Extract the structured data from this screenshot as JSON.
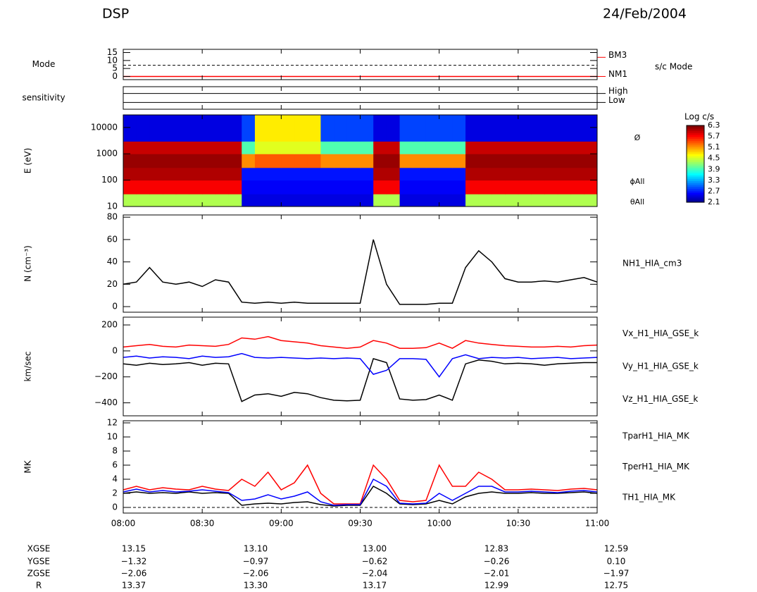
{
  "header": {
    "left": "DSP",
    "right": "24/Feb/2004"
  },
  "chart_data": [
    {
      "type": "line",
      "ylabel": "Mode",
      "ylim": [
        -2,
        17
      ],
      "yticks": [
        0,
        5,
        10,
        15
      ],
      "reference": 7,
      "levels": [
        {
          "label": "BM3",
          "value": 12
        },
        {
          "label": "NM1",
          "value": 0
        }
      ],
      "level_color": "#ff0000",
      "side_label": "s/c Mode",
      "x": [
        0,
        180
      ],
      "series": [
        {
          "color": "#ff0000",
          "values": [
            0,
            0
          ]
        }
      ]
    },
    {
      "type": "line",
      "ylabel": "sensitivity",
      "ylim": [
        0,
        1
      ],
      "yticks": [],
      "level_lines": true,
      "levels": [
        {
          "label": "High",
          "value": 0.7
        },
        {
          "label": "Low",
          "value": 0.3
        }
      ],
      "level_color": "#000000",
      "x": [],
      "series": []
    },
    {
      "type": "heatmap",
      "ylabel": "E (eV)",
      "log": true,
      "ylim": [
        10,
        30000
      ],
      "yticks": [
        10,
        100,
        1000,
        10000
      ],
      "annotations": [
        "Ø",
        "ϕAll",
        "θAll"
      ],
      "colorbar": {
        "title": "Log c/s",
        "zlim": [
          2.1,
          6.3
        ],
        "ticks": [
          6.3,
          5.7,
          5.1,
          4.5,
          3.9,
          3.3,
          2.7,
          2.1
        ]
      },
      "x_edges": [
        0,
        5,
        10,
        15,
        20,
        25,
        30,
        35,
        40,
        45,
        50,
        55,
        60,
        65,
        70,
        75,
        80,
        85,
        90,
        95,
        100,
        105,
        110,
        115,
        120,
        125,
        130,
        135,
        140,
        145,
        150,
        155,
        160,
        165,
        170,
        175,
        180
      ],
      "y_edges": [
        10,
        30,
        100,
        300,
        1000,
        3000,
        30000
      ],
      "z": [
        [
          4.4,
          4.4,
          4.4,
          4.4,
          4.4,
          4.4,
          4.4,
          4.4,
          4.4,
          2.5,
          2.5,
          2.5,
          2.5,
          2.5,
          2.5,
          2.5,
          2.5,
          2.5,
          2.5,
          4.4,
          4.4,
          2.5,
          2.5,
          2.5,
          2.5,
          2.5,
          4.4,
          4.4,
          4.4,
          4.4,
          4.4,
          4.4,
          4.4,
          4.4,
          4.4,
          4.4
        ],
        [
          5.8,
          5.8,
          5.8,
          5.8,
          5.8,
          5.8,
          5.8,
          5.8,
          5.8,
          2.6,
          2.6,
          2.6,
          2.6,
          2.6,
          2.6,
          2.6,
          2.6,
          2.6,
          2.6,
          5.8,
          5.8,
          2.6,
          2.6,
          2.6,
          2.6,
          2.6,
          5.8,
          5.8,
          5.8,
          5.8,
          5.8,
          5.8,
          5.8,
          5.8,
          5.8,
          5.8
        ],
        [
          6.1,
          6.1,
          6.1,
          6.1,
          6.1,
          6.1,
          6.1,
          6.1,
          6.1,
          2.7,
          2.7,
          2.7,
          2.7,
          2.7,
          2.7,
          2.7,
          2.7,
          2.7,
          2.7,
          6.1,
          6.1,
          2.7,
          2.7,
          2.7,
          2.7,
          2.7,
          6.1,
          6.1,
          6.1,
          6.1,
          6.1,
          6.1,
          6.1,
          6.1,
          6.1,
          6.1
        ],
        [
          6.2,
          6.2,
          6.2,
          6.2,
          6.2,
          6.2,
          6.2,
          6.2,
          6.2,
          5.2,
          5.4,
          5.4,
          5.4,
          5.4,
          5.4,
          5.2,
          5.2,
          5.2,
          5.2,
          6.2,
          6.2,
          5.2,
          5.2,
          5.2,
          5.2,
          5.2,
          6.2,
          6.2,
          6.2,
          6.2,
          6.2,
          6.2,
          6.2,
          6.2,
          6.2,
          6.2
        ],
        [
          6.0,
          6.0,
          6.0,
          6.0,
          6.0,
          6.0,
          6.0,
          6.0,
          6.0,
          4.0,
          4.6,
          4.6,
          4.6,
          4.6,
          4.6,
          4.0,
          4.0,
          4.0,
          4.0,
          6.0,
          6.0,
          4.0,
          4.0,
          4.0,
          4.0,
          4.0,
          6.0,
          6.0,
          6.0,
          6.0,
          6.0,
          6.0,
          6.0,
          6.0,
          6.0,
          6.0
        ],
        [
          2.5,
          2.5,
          2.5,
          2.5,
          2.5,
          2.5,
          2.5,
          2.5,
          2.5,
          2.9,
          4.8,
          4.8,
          4.8,
          4.8,
          4.8,
          2.9,
          2.9,
          2.9,
          2.9,
          2.5,
          2.5,
          2.9,
          2.9,
          2.9,
          2.9,
          2.9,
          2.5,
          2.5,
          2.5,
          2.5,
          2.5,
          2.5,
          2.5,
          2.5,
          2.5,
          2.5
        ]
      ]
    },
    {
      "type": "line",
      "ylabel": "N (cm⁻³)",
      "ylim": [
        -5,
        82
      ],
      "yticks": [
        0,
        20,
        40,
        60,
        80
      ],
      "x": [
        0,
        5,
        10,
        15,
        20,
        25,
        30,
        35,
        40,
        45,
        50,
        55,
        60,
        65,
        70,
        75,
        80,
        85,
        90,
        95,
        100,
        105,
        110,
        115,
        120,
        125,
        130,
        135,
        140,
        145,
        150,
        155,
        160,
        165,
        170,
        175,
        180
      ],
      "series": [
        {
          "name": "NH1_HIA_cm3",
          "color": "#000000",
          "values": [
            20,
            22,
            35,
            22,
            20,
            22,
            18,
            24,
            22,
            4,
            3,
            4,
            3,
            4,
            3,
            3,
            3,
            3,
            3,
            60,
            20,
            2,
            2,
            2,
            3,
            3,
            35,
            50,
            40,
            25,
            22,
            22,
            23,
            22,
            24,
            26,
            22
          ]
        }
      ]
    },
    {
      "type": "line",
      "ylabel": "km/sec",
      "ylim": [
        -500,
        260
      ],
      "yticks": [
        {
          "value": -400,
          "label": "−400"
        },
        {
          "value": -200,
          "label": "−200"
        },
        0,
        200
      ],
      "x": [
        0,
        5,
        10,
        15,
        20,
        25,
        30,
        35,
        40,
        45,
        50,
        55,
        60,
        65,
        70,
        75,
        80,
        85,
        90,
        95,
        100,
        105,
        110,
        115,
        120,
        125,
        130,
        135,
        140,
        145,
        150,
        155,
        160,
        165,
        170,
        175,
        180
      ],
      "series": [
        {
          "name": "Vx_H1_HIA_GSE_k",
          "color": "#000000",
          "values": [
            -100,
            -110,
            -95,
            -105,
            -100,
            -90,
            -110,
            -95,
            -100,
            -390,
            -340,
            -330,
            -350,
            -320,
            -330,
            -360,
            -380,
            -385,
            -380,
            -60,
            -90,
            -370,
            -380,
            -375,
            -340,
            -380,
            -100,
            -70,
            -80,
            -100,
            -95,
            -100,
            -110,
            -100,
            -95,
            -90,
            -90
          ]
        },
        {
          "name": "Vy_H1_HIA_GSE_k",
          "color": "#ff0000",
          "values": [
            30,
            40,
            50,
            35,
            30,
            45,
            40,
            35,
            50,
            100,
            90,
            110,
            80,
            70,
            60,
            40,
            30,
            20,
            30,
            80,
            60,
            20,
            20,
            25,
            60,
            20,
            80,
            60,
            50,
            40,
            35,
            30,
            30,
            35,
            30,
            40,
            45
          ]
        },
        {
          "name": "Vz_H1_HIA_GSE_k",
          "color": "#0000ff",
          "values": [
            -50,
            -40,
            -55,
            -45,
            -50,
            -60,
            -40,
            -50,
            -45,
            -20,
            -50,
            -55,
            -50,
            -55,
            -60,
            -55,
            -60,
            -55,
            -60,
            -180,
            -150,
            -60,
            -60,
            -65,
            -200,
            -60,
            -30,
            -60,
            -50,
            -55,
            -50,
            -60,
            -55,
            -50,
            -60,
            -55,
            -50
          ]
        }
      ]
    },
    {
      "type": "line",
      "ylabel": "MK",
      "ylim": [
        -0.8,
        12.3
      ],
      "yticks": [
        0,
        2,
        4,
        6,
        8,
        10,
        12
      ],
      "reference": 0,
      "xlim": [
        0,
        180
      ],
      "xticks": [
        {
          "value": 0,
          "label": "08:00"
        },
        {
          "value": 30,
          "label": "08:30"
        },
        {
          "value": 60,
          "label": "09:00"
        },
        {
          "value": 90,
          "label": "09:30"
        },
        {
          "value": 120,
          "label": "10:00"
        },
        {
          "value": 150,
          "label": "10:30"
        },
        {
          "value": 180,
          "label": "11:00"
        }
      ],
      "x": [
        0,
        5,
        10,
        15,
        20,
        25,
        30,
        35,
        40,
        45,
        50,
        55,
        60,
        65,
        70,
        75,
        80,
        85,
        90,
        95,
        100,
        105,
        110,
        115,
        120,
        125,
        130,
        135,
        140,
        145,
        150,
        155,
        160,
        165,
        170,
        175,
        180
      ],
      "series": [
        {
          "name": "TparH1_HIA_MK",
          "color": "#ff0000",
          "values": [
            2.5,
            3,
            2.5,
            2.8,
            2.6,
            2.5,
            3,
            2.6,
            2.4,
            4,
            3,
            5,
            2.5,
            3.5,
            6,
            2,
            0.5,
            0.5,
            0.5,
            6,
            4,
            1,
            0.8,
            1,
            6,
            3,
            3,
            5,
            4,
            2.5,
            2.5,
            2.6,
            2.5,
            2.4,
            2.6,
            2.7,
            2.5
          ]
        },
        {
          "name": "TperH1_HIA_MK",
          "color": "#000000",
          "values": [
            2,
            2.2,
            2,
            2.1,
            2,
            2.2,
            2,
            2.1,
            2,
            0.3,
            0.5,
            0.6,
            0.5,
            0.7,
            0.8,
            0.4,
            0.2,
            0.3,
            0.3,
            3,
            2,
            0.5,
            0.4,
            0.5,
            1,
            0.5,
            1.5,
            2,
            2.2,
            2,
            2,
            2.1,
            2,
            2,
            2.1,
            2.2,
            2
          ]
        },
        {
          "name": "TH1_HIA_MK",
          "color": "#0000ff",
          "values": [
            2.2,
            2.6,
            2.2,
            2.4,
            2.2,
            2.3,
            2.5,
            2.3,
            2.1,
            1,
            1.2,
            1.8,
            1.2,
            1.6,
            2.2,
            0.8,
            0.3,
            0.4,
            0.4,
            4,
            3,
            0.6,
            0.5,
            0.6,
            2,
            1,
            2,
            3,
            3,
            2.2,
            2.2,
            2.3,
            2.2,
            2.1,
            2.3,
            2.4,
            2.2
          ]
        }
      ]
    }
  ],
  "orbit": {
    "rows": [
      {
        "label": "XGSE",
        "values": [
          "13.15",
          "13.10",
          "13.00",
          "12.83",
          "12.59"
        ]
      },
      {
        "label": "YGSE",
        "values": [
          "−1.32",
          "−0.97",
          "−0.62",
          "−0.26",
          "0.10"
        ]
      },
      {
        "label": "ZGSE",
        "values": [
          "−2.06",
          "−2.06",
          "−2.04",
          "−2.01",
          "−1.97"
        ]
      },
      {
        "label": "R",
        "values": [
          "13.37",
          "13.30",
          "13.17",
          "12.99",
          "12.75"
        ]
      }
    ]
  }
}
